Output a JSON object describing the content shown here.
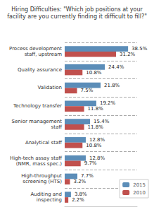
{
  "chart_data": {
    "type": "bar",
    "orientation": "horizontal",
    "title": "Hiring Difficulties: \"Which job positions at your\nfacility are you currently finding it difficult to fill?\"",
    "categories": [
      "Process development\nstaff, upstream",
      "Quality assurance",
      "Validation",
      "Technology transfer",
      "Senior management\nstaff",
      "Analytical staff",
      "High-tech assay staff\n(NMR, mass spec.)",
      "High-throughput\nscreening (HTS)",
      "Auditing and\ninspecting"
    ],
    "series": [
      {
        "name": "2015",
        "color": "#5b8db8",
        "values": [
          38.5,
          24.4,
          21.8,
          19.2,
          15.4,
          12.8,
          12.8,
          7.7,
          3.8
        ],
        "value_labels": [
          "38.5%",
          "24.4%",
          "21.8%",
          "19.2%",
          "15.4%",
          "12.8%",
          "12.8%",
          "7.7%",
          "3.8%"
        ]
      },
      {
        "name": "2010",
        "color": "#c0504d",
        "values": [
          31.2,
          10.8,
          7.5,
          11.8,
          11.8,
          10.8,
          9.7,
          3.2,
          2.2
        ],
        "value_labels": [
          "31.2%",
          "10.8%",
          "7.5%",
          "11.8%",
          "11.8%",
          "10.8%",
          "9.7%",
          "3.2%",
          "2.2%"
        ]
      }
    ],
    "xlim": [
      0,
      44
    ],
    "tick_labels": "y",
    "data_labels": true,
    "grid": true,
    "legend": "lower right"
  }
}
